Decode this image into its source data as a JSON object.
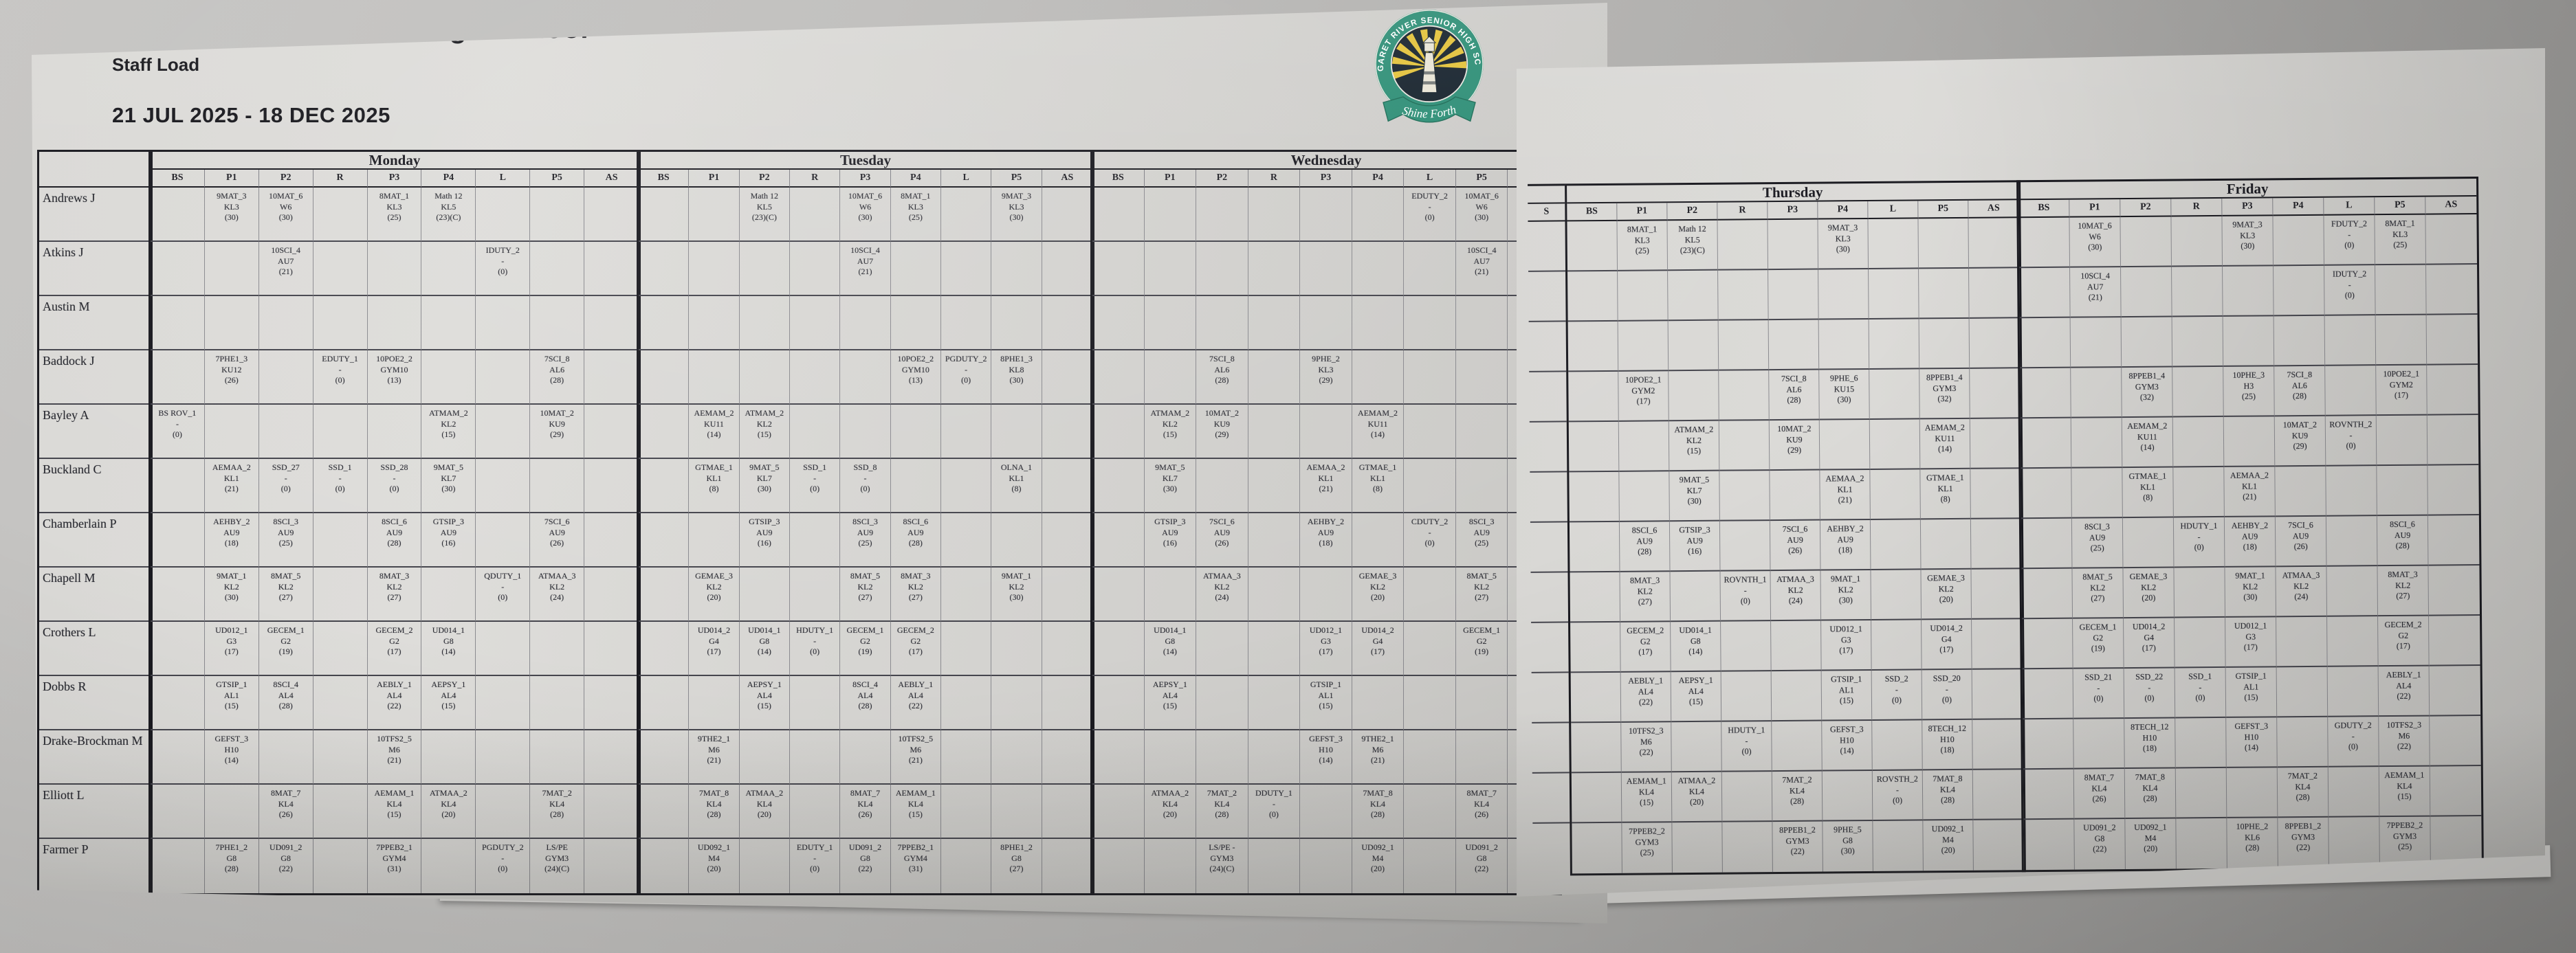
{
  "page": {
    "school": "Margaret River Senior High School",
    "report_title": "Staff Load",
    "date_range": "21 JUL 2025 - 18 DEC 2025"
  },
  "logo": {
    "ring_text": "MARGARET RIVER SENIOR HIGH SCHOOL",
    "motto": "Shine Forth",
    "ring_color": "#2f8f77",
    "ray_color": "#e3c33c",
    "inner_color": "#18242e"
  },
  "periods": [
    "BS",
    "P1",
    "P2",
    "R",
    "P3",
    "P4",
    "L",
    "P5",
    "AS"
  ],
  "overlap_column_header": "S",
  "staff": [
    "Andrews J",
    "Atkins J",
    "Austin M",
    "Baddock J",
    "Bayley A",
    "Buckland C",
    "Chamberlain P",
    "Chapell M",
    "Crothers L",
    "Dobbs R",
    "Drake-Brockman M",
    "Elliott L",
    "Farmer P"
  ],
  "days": [
    {
      "name": "Monday",
      "cells": {
        "Andrews J": {
          "P1": "9MAT_3\nKL3\n(30)",
          "P2": "10MAT_6\nW6\n(30)",
          "P3": "8MAT_1\nKL3\n(25)",
          "P4": "Math 12\nKL5\n(23)(C)"
        },
        "Atkins J": {
          "P2": "10SCI_4\nAU7\n(21)",
          "L": "IDUTY_2\n-\n(0)"
        },
        "Baddock J": {
          "P1": "7PHE1_3\nKU12\n(26)",
          "R": "EDUTY_1\n-\n(0)",
          "P3": "10POE2_2\nGYM10\n(13)",
          "P5": "7SCI_8\nAL6\n(28)"
        },
        "Bayley A": {
          "BS": "BS ROV_1\n-\n(0)",
          "P4": "ATMAM_2\nKL2\n(15)",
          "P5": "10MAT_2\nKU9\n(29)"
        },
        "Buckland C": {
          "P1": "AEMAA_2\nKL1\n(21)",
          "P2": "SSD_27\n-\n(0)",
          "R": "SSD_1\n-\n(0)",
          "P3": "SSD_28\n-\n(0)",
          "P4": "9MAT_5\nKL7\n(30)"
        },
        "Chamberlain P": {
          "P1": "AEHBY_2\nAU9\n(18)",
          "P2": "8SCI_3\nAU9\n(25)",
          "P3": "8SCI_6\nAU9\n(28)",
          "P4": "GTSIP_3\nAU9\n(16)",
          "P5": "7SCI_6\nAU9\n(26)"
        },
        "Chapell M": {
          "P1": "9MAT_1\nKL2\n(30)",
          "P2": "8MAT_5\nKL2\n(27)",
          "P3": "8MAT_3\nKL2\n(27)",
          "L": "QDUTY_1\n-\n(0)",
          "P5": "ATMAA_3\nKL2\n(24)"
        },
        "Crothers L": {
          "P1": "UD012_1\nG3\n(17)",
          "P2": "GECEM_1\nG2\n(19)",
          "P3": "GECEM_2\nG2\n(17)",
          "P4": "UD014_1\nG8\n(14)"
        },
        "Dobbs R": {
          "P1": "GTSIP_1\nAL1\n(15)",
          "P2": "8SCI_4\nAL4\n(28)",
          "P3": "AEBLY_1\nAL4\n(22)",
          "P4": "AEPSY_1\nAL4\n(15)"
        },
        "Drake-Brockman M": {
          "P1": "GEFST_3\nH10\n(14)",
          "P3": "10TFS2_5\nM6\n(21)"
        },
        "Elliott L": {
          "P2": "8MAT_7\nKL4\n(26)",
          "P3": "AEMAM_1\nKL4\n(15)",
          "P4": "ATMAA_2\nKL4\n(20)",
          "P5": "7MAT_2\nKL4\n(28)"
        },
        "Farmer P": {
          "P1": "7PHE1_2\nG8\n(28)",
          "P2": "UD091_2\nG8\n(22)",
          "P3": "7PPEB2_1\nGYM4\n(31)",
          "L": "PGDUTY_2\n-\n(0)",
          "P5": "LS/PE\nGYM3\n(24)(C)"
        }
      }
    },
    {
      "name": "Tuesday",
      "cells": {
        "Andrews J": {
          "P2": "Math 12\nKL5\n(23)(C)",
          "P3": "10MAT_6\nW6\n(30)",
          "P4": "8MAT_1\nKL3\n(25)",
          "P5": "9MAT_3\nKL3\n(30)"
        },
        "Atkins J": {
          "P3": "10SCI_4\nAU7\n(21)"
        },
        "Baddock J": {
          "P4": "10POE2_2\nGYM10\n(13)",
          "L": "PGDUTY_2\n-\n(0)",
          "P5": "8PHE1_3\nKL8\n(30)"
        },
        "Bayley A": {
          "P1": "AEMAM_2\nKU11\n(14)",
          "P2": "ATMAM_2\nKL2\n(15)"
        },
        "Buckland C": {
          "P1": "GTMAE_1\nKL1\n(8)",
          "P2": "9MAT_5\nKL7\n(30)",
          "R": "SSD_1\n-\n(0)",
          "P3": "SSD_8\n-\n(0)",
          "P5": "OLNA_1\nKL1\n(8)"
        },
        "Chamberlain P": {
          "P2": "GTSIP_3\nAU9\n(16)",
          "P3": "8SCI_3\nAU9\n(25)",
          "P4": "8SCI_6\nAU9\n(28)"
        },
        "Chapell M": {
          "P1": "GEMAE_3\nKL2\n(20)",
          "P3": "8MAT_5\nKL2\n(27)",
          "P4": "8MAT_3\nKL2\n(27)",
          "P5": "9MAT_1\nKL2\n(30)"
        },
        "Crothers L": {
          "P1": "UD014_2\nG4\n(17)",
          "P2": "UD014_1\nG8\n(14)",
          "R": "HDUTY_1\n-\n(0)",
          "P3": "GECEM_1\nG2\n(19)",
          "P4": "GECEM_2\nG2\n(17)"
        },
        "Dobbs R": {
          "P2": "AEPSY_1\nAL4\n(15)",
          "P3": "8SCI_4\nAL4\n(28)",
          "P4": "AEBLY_1\nAL4\n(22)"
        },
        "Drake-Brockman M": {
          "P1": "9THE2_1\nM6\n(21)",
          "P4": "10TFS2_5\nM6\n(21)"
        },
        "Elliott L": {
          "P1": "7MAT_8\nKL4\n(28)",
          "P2": "ATMAA_2\nKL4\n(20)",
          "P3": "8MAT_7\nKL4\n(26)",
          "P4": "AEMAM_1\nKL4\n(15)"
        },
        "Farmer P": {
          "P1": "UD092_1\nM4\n(20)",
          "R": "EDUTY_1\n-\n(0)",
          "P3": "UD091_2\nG8\n(22)",
          "P4": "7PPEB2_1\nGYM4\n(31)",
          "P5": "8PHE1_2\nG8\n(27)"
        }
      }
    },
    {
      "name": "Wednesday",
      "cells": {
        "Andrews J": {
          "L": "EDUTY_2\n-\n(0)",
          "P5": "10MAT_6\nW6\n(30)"
        },
        "Atkins J": {
          "P5": "10SCI_4\nAU7\n(21)"
        },
        "Baddock J": {
          "P2": "7SCI_8\nAL6\n(28)",
          "P3": "9PHE_2\nKL3\n(29)"
        },
        "Bayley A": {
          "P1": "ATMAM_2\nKL2\n(15)",
          "P2": "10MAT_2\nKU9\n(29)",
          "P4": "AEMAM_2\nKU11\n(14)"
        },
        "Buckland C": {
          "P1": "9MAT_5\nKL7\n(30)",
          "P3": "AEMAA_2\nKL1\n(21)",
          "P4": "GTMAE_1\nKL1\n(8)"
        },
        "Chamberlain P": {
          "P1": "GTSIP_3\nAU9\n(16)",
          "P2": "7SCI_6\nAU9\n(26)",
          "P3": "AEHBY_2\nAU9\n(18)",
          "L": "CDUTY_2\n-\n(0)",
          "P5": "8SCI_3\nAU9\n(25)"
        },
        "Chapell M": {
          "P2": "ATMAA_3\nKL2\n(24)",
          "P4": "GEMAE_3\nKL2\n(20)",
          "P5": "8MAT_5\nKL2\n(27)"
        },
        "Crothers L": {
          "P1": "UD014_1\nG8\n(14)",
          "P3": "UD012_1\nG3\n(17)",
          "P4": "UD014_2\nG4\n(17)",
          "P5": "GECEM_1\nG2\n(19)"
        },
        "Dobbs R": {
          "P1": "AEPSY_1\nAL4\n(15)",
          "P3": "GTSIP_1\nAL1\n(15)"
        },
        "Drake-Brockman M": {
          "P3": "GEFST_3\nH10\n(14)",
          "P4": "9THE2_1\nM6\n(21)"
        },
        "Elliott L": {
          "P1": "ATMAA_2\nKL4\n(20)",
          "P2": "7MAT_2\nKL4\n(28)",
          "R": "DDUTY_1\n-\n(0)",
          "P4": "7MAT_8\nKL4\n(28)",
          "P5": "8MAT_7\nKL4\n(26)"
        },
        "Farmer P": {
          "P2": "LS/PE -\nGYM3\n(24)(C)",
          "P4": "UD092_1\nM4\n(20)",
          "P5": "UD091_2\nG8\n(22)"
        }
      }
    },
    {
      "name": "Thursday",
      "cells": {
        "Andrews J": {
          "P1": "8MAT_1\nKL3\n(25)",
          "P2": "Math 12\nKL5\n(23)(C)",
          "P4": "9MAT_3\nKL3\n(30)"
        },
        "Baddock J": {
          "P1": "10POE2_1\nGYM2\n(17)",
          "P3": "7SCI_8\nAL6\n(28)",
          "P4": "9PHE_6\nKU15\n(30)",
          "P5": "8PPEB1_4\nGYM3\n(32)"
        },
        "Bayley A": {
          "P2": "ATMAM_2\nKL2\n(15)",
          "P3": "10MAT_2\nKU9\n(29)",
          "P5": "AEMAM_2\nKU11\n(14)"
        },
        "Buckland C": {
          "P2": "9MAT_5\nKL7\n(30)",
          "P4": "AEMAA_2\nKL1\n(21)",
          "P5": "GTMAE_1\nKL1\n(8)"
        },
        "Chamberlain P": {
          "P1": "8SCI_6\nAU9\n(28)",
          "P2": "GTSIP_3\nAU9\n(16)",
          "P3": "7SCI_6\nAU9\n(26)",
          "P4": "AEHBY_2\nAU9\n(18)"
        },
        "Chapell M": {
          "P1": "8MAT_3\nKL2\n(27)",
          "R": "ROVNTH_1\n-\n(0)",
          "P3": "ATMAA_3\nKL2\n(24)",
          "P4": "9MAT_1\nKL2\n(30)",
          "P5": "GEMAE_3\nKL2\n(20)"
        },
        "Crothers L": {
          "P1": "GECEM_2\nG2\n(17)",
          "P2": "UD014_1\nG8\n(14)",
          "P4": "UD012_1\nG3\n(17)",
          "P5": "UD014_2\nG4\n(17)"
        },
        "Dobbs R": {
          "P1": "AEBLY_1\nAL4\n(22)",
          "P2": "AEPSY_1\nAL4\n(15)",
          "P4": "GTSIP_1\nAL1\n(15)",
          "L": "SSD_2\n-\n(0)",
          "P5": "SSD_20\n-\n(0)"
        },
        "Drake-Brockman M": {
          "P1": "10TFS2_3\nM6\n(22)",
          "R": "HDUTY_1\n-\n(0)",
          "P4": "GEFST_3\nH10\n(14)",
          "P5": "8TECH_12\nH10\n(18)"
        },
        "Elliott L": {
          "P1": "AEMAM_1\nKL4\n(15)",
          "P2": "ATMAA_2\nKL4\n(20)",
          "P3": "7MAT_2\nKL4\n(28)",
          "L": "ROVSTH_2\n-\n(0)",
          "P5": "7MAT_8\nKL4\n(28)"
        },
        "Farmer P": {
          "P1": "7PPEB2_2\nGYM3\n(25)",
          "P3": "8PPEB1_2\nGYM3\n(22)",
          "P4": "9PHE_5\nG8\n(30)",
          "P5": "UD092_1\nM4\n(20)"
        }
      }
    },
    {
      "name": "Friday",
      "cells": {
        "Andrews J": {
          "P1": "10MAT_6\nW6\n(30)",
          "P3": "9MAT_3\nKL3\n(30)",
          "L": "FDUTY_2\n-\n(0)",
          "P5": "8MAT_1\nKL3\n(25)"
        },
        "Atkins J": {
          "P1": "10SCI_4\nAU7\n(21)",
          "L": "IDUTY_2\n-\n(0)"
        },
        "Baddock J": {
          "P2": "8PPEB1_4\nGYM3\n(32)",
          "P3": "10PHE_3\nH3\n(25)",
          "P4": "7SCI_8\nAL6\n(28)",
          "P5": "10POE2_1\nGYM2\n(17)"
        },
        "Bayley A": {
          "P2": "AEMAM_2\nKU11\n(14)",
          "P4": "10MAT_2\nKU9\n(29)",
          "L": "ROVNTH_2\n-\n(0)"
        },
        "Buckland C": {
          "P2": "GTMAE_1\nKL1\n(8)",
          "P3": "AEMAA_2\nKL1\n(21)"
        },
        "Chamberlain P": {
          "P1": "8SCI_3\nAU9\n(25)",
          "R": "HDUTY_1\n-\n(0)",
          "P3": "AEHBY_2\nAU9\n(18)",
          "P4": "7SCI_6\nAU9\n(26)",
          "P5": "8SCI_6\nAU9\n(28)"
        },
        "Chapell M": {
          "P1": "8MAT_5\nKL2\n(27)",
          "P2": "GEMAE_3\nKL2\n(20)",
          "P3": "9MAT_1\nKL2\n(30)",
          "P4": "ATMAA_3\nKL2\n(24)",
          "P5": "8MAT_3\nKL2\n(27)"
        },
        "Crothers L": {
          "P1": "GECEM_1\nG2\n(19)",
          "P2": "UD014_2\nG4\n(17)",
          "P3": "UD012_1\nG3\n(17)",
          "P5": "GECEM_2\nG2\n(17)"
        },
        "Dobbs R": {
          "P1": "SSD_21\n-\n(0)",
          "P2": "SSD_22\n-\n(0)",
          "R": "SSD_1\n-\n(0)",
          "P3": "GTSIP_1\nAL1\n(15)",
          "P5": "AEBLY_1\nAL4\n(22)"
        },
        "Drake-Brockman M": {
          "P2": "8TECH_12\nH10\n(18)",
          "P3": "GEFST_3\nH10\n(14)",
          "L": "GDUTY_2\n-\n(0)",
          "P5": "10TFS2_3\nM6\n(22)"
        },
        "Elliott L": {
          "P1": "8MAT_7\nKL4\n(26)",
          "P2": "7MAT_8\nKL4\n(28)",
          "P4": "7MAT_2\nKL4\n(28)",
          "P5": "AEMAM_1\nKL4\n(15)"
        },
        "Farmer P": {
          "P1": "UD091_2\nG8\n(22)",
          "P2": "UD092_1\nM4\n(20)",
          "P3": "10PHE_2\nKL6\n(28)",
          "P4": "8PPEB1_2\nGYM3\n(22)",
          "P5": "7PPEB2_2\nGYM3\n(25)"
        }
      }
    }
  ]
}
